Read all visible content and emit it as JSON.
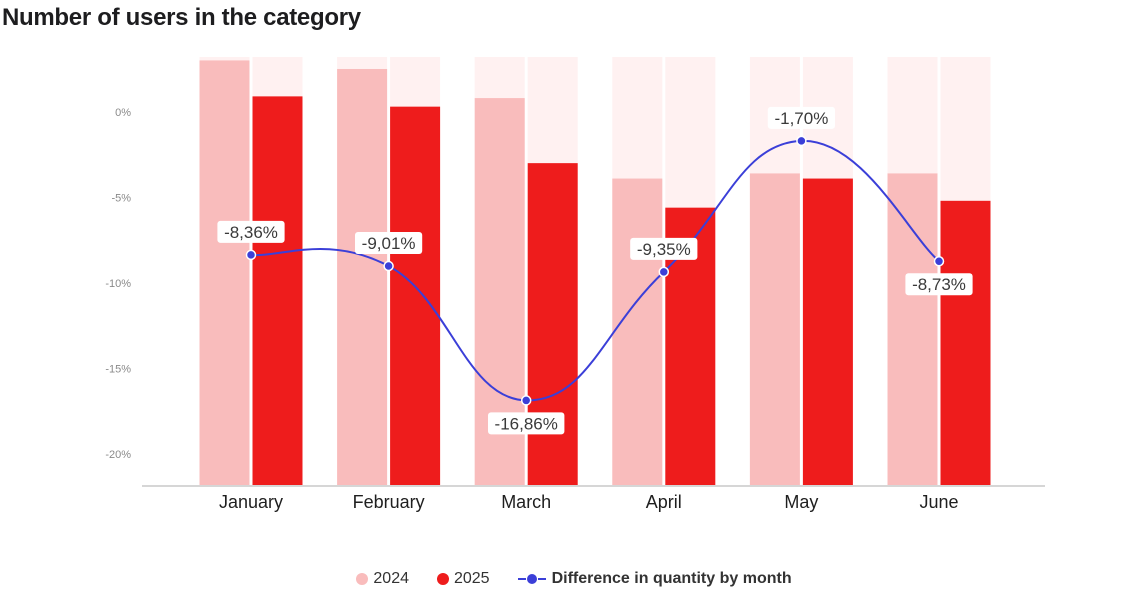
{
  "title": "Number of users in the category",
  "chart_data": {
    "type": "bar",
    "categories": [
      "January",
      "February",
      "March",
      "April",
      "May",
      "June"
    ],
    "y_ticks": [
      "0%",
      "-5%",
      "-10%",
      "-15%",
      "-20%"
    ],
    "ylim": [
      -21.8,
      3.2
    ],
    "bar_scale_max": 3.2,
    "grid": false,
    "legend_position": "bottom",
    "series": [
      {
        "name": "2024",
        "type": "bar",
        "color": "#f9bcbc",
        "background": "#fff1f1",
        "values": [
          3.0,
          2.5,
          0.8,
          -3.9,
          -3.6,
          -3.6
        ]
      },
      {
        "name": "2025",
        "type": "bar",
        "color": "#ee1c1c",
        "background": "#fff1f1",
        "values": [
          0.9,
          0.3,
          -3.0,
          -5.6,
          -3.9,
          -5.2
        ]
      },
      {
        "name": "Difference in quantity by month",
        "type": "line",
        "color": "#3b3fd8",
        "values": [
          -8.36,
          -9.01,
          -16.86,
          -9.35,
          -1.7,
          -8.73
        ],
        "labels": [
          "-8,36%",
          "-9,01%",
          "-16,86%",
          "-9,35%",
          "-1,70%",
          "-8,73%"
        ],
        "label_positions": [
          "above",
          "above",
          "below",
          "above",
          "above",
          "below"
        ]
      }
    ]
  },
  "legend": {
    "items": [
      {
        "label": "2024",
        "color": "#f9bcbc"
      },
      {
        "label": "2025",
        "color": "#ee1c1c"
      },
      {
        "label": "Difference in quantity by month",
        "color": "#3b3fd8"
      }
    ]
  }
}
